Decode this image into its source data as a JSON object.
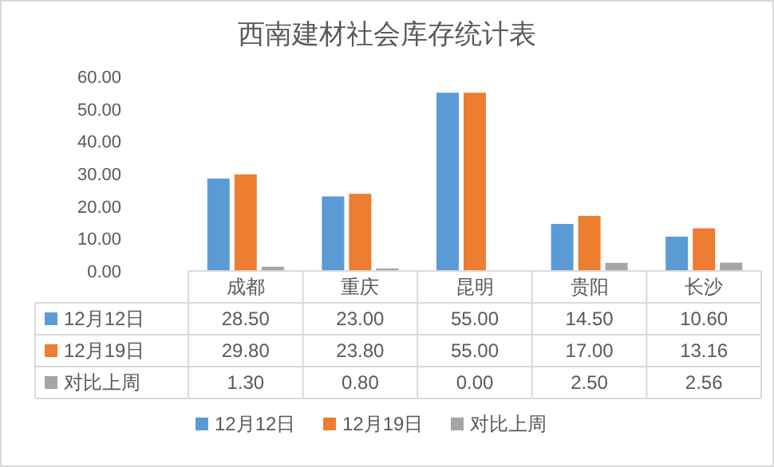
{
  "chart_data": {
    "type": "bar",
    "title": "西南建材社会库存统计表",
    "categories": [
      "成都",
      "重庆",
      "昆明",
      "贵阳",
      "长沙"
    ],
    "series": [
      {
        "name": "12月12日",
        "color": "#5b9bd5",
        "values": [
          28.5,
          23.0,
          55.0,
          14.5,
          10.6
        ],
        "value_labels": [
          "28.50",
          "23.00",
          "55.00",
          "14.50",
          "10.60"
        ]
      },
      {
        "name": "12月19日",
        "color": "#ed7d31",
        "values": [
          29.8,
          23.8,
          55.0,
          17.0,
          13.16
        ],
        "value_labels": [
          "29.80",
          "23.80",
          "55.00",
          "17.00",
          "13.16"
        ]
      },
      {
        "name": "对比上周",
        "color": "#a5a5a5",
        "values": [
          1.3,
          0.8,
          0.0,
          2.5,
          2.56
        ],
        "value_labels": [
          "1.30",
          "0.80",
          "0.00",
          "2.50",
          "2.56"
        ]
      }
    ],
    "ylim": [
      0,
      60
    ],
    "yticks": [
      {
        "value": 0,
        "label": "0.00"
      },
      {
        "value": 10,
        "label": "10.00"
      },
      {
        "value": 20,
        "label": "20.00"
      },
      {
        "value": 30,
        "label": "30.00"
      },
      {
        "value": 40,
        "label": "40.00"
      },
      {
        "value": 50,
        "label": "50.00"
      },
      {
        "value": 60,
        "label": "60.00"
      }
    ],
    "grid": false,
    "legend": "bottom"
  }
}
